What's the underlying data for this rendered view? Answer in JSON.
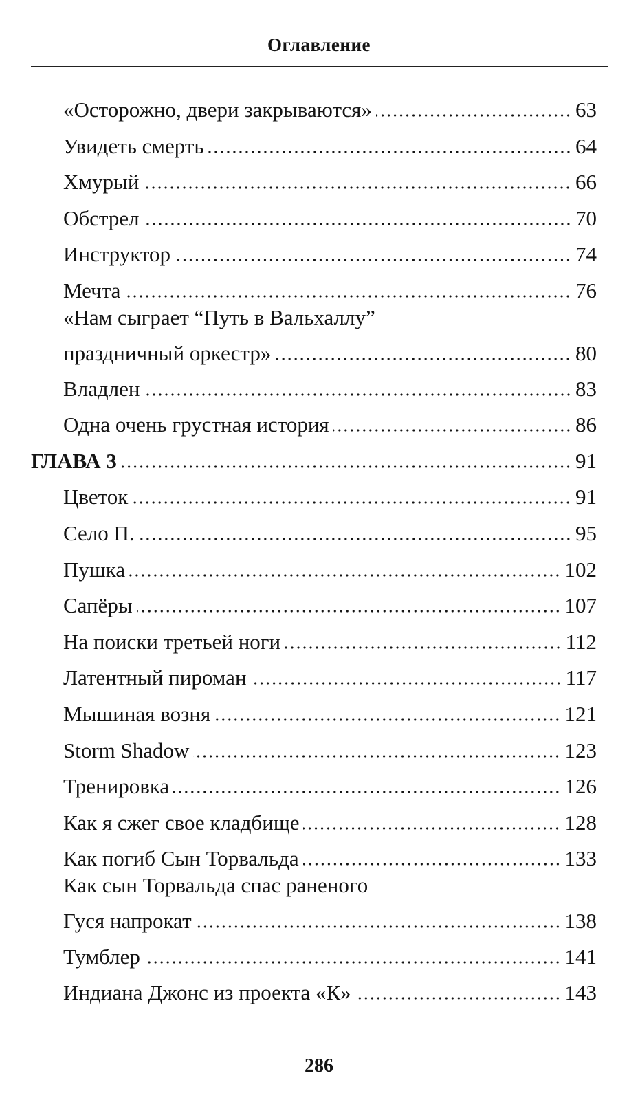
{
  "header": {
    "title": "Оглавление"
  },
  "entries": [
    {
      "title": "«Осторожно, двери закрываются»",
      "page": "63"
    },
    {
      "title": "Увидеть смерть",
      "page": "64"
    },
    {
      "title": "Хмурый",
      "page": "66"
    },
    {
      "title": "Обстрел",
      "page": "70"
    },
    {
      "title": "Инструктор",
      "page": "74"
    },
    {
      "title": "Мечта",
      "page": "76"
    },
    {
      "title_line1": "«Нам сыграет “Путь в Вальхаллу”",
      "title": "праздничный оркестр»",
      "page": "80"
    },
    {
      "title": "Владлен",
      "page": "83"
    },
    {
      "title": "Одна очень грустная история",
      "page": "86"
    },
    {
      "title": "ГЛАВА 3",
      "page": "91",
      "chapter": true
    },
    {
      "title": "Цветок",
      "page": "91"
    },
    {
      "title": "Село П.",
      "page": "95"
    },
    {
      "title": "Пушка",
      "page": "102"
    },
    {
      "title": "Сапёры",
      "page": "107"
    },
    {
      "title": "На поиски третьей ноги",
      "page": "112"
    },
    {
      "title": "Латентный пироман",
      "page": "117"
    },
    {
      "title": "Мышиная возня",
      "page": "121"
    },
    {
      "title": "Storm Shadow",
      "page": "123"
    },
    {
      "title": "Тренировка",
      "page": "126"
    },
    {
      "title": "Как я сжег свое кладбище",
      "page": "128"
    },
    {
      "title": "Как погиб Сын Торвальда",
      "page": "133"
    },
    {
      "title_line1": "Как сын Торвальда спас раненого",
      "title": "Гуся напрокат",
      "page": "138"
    },
    {
      "title": "Тумблер",
      "page": "141"
    },
    {
      "title": "Индиана Джонс из проекта «К»",
      "page": "143"
    }
  ],
  "footer": {
    "page_number": "286"
  }
}
